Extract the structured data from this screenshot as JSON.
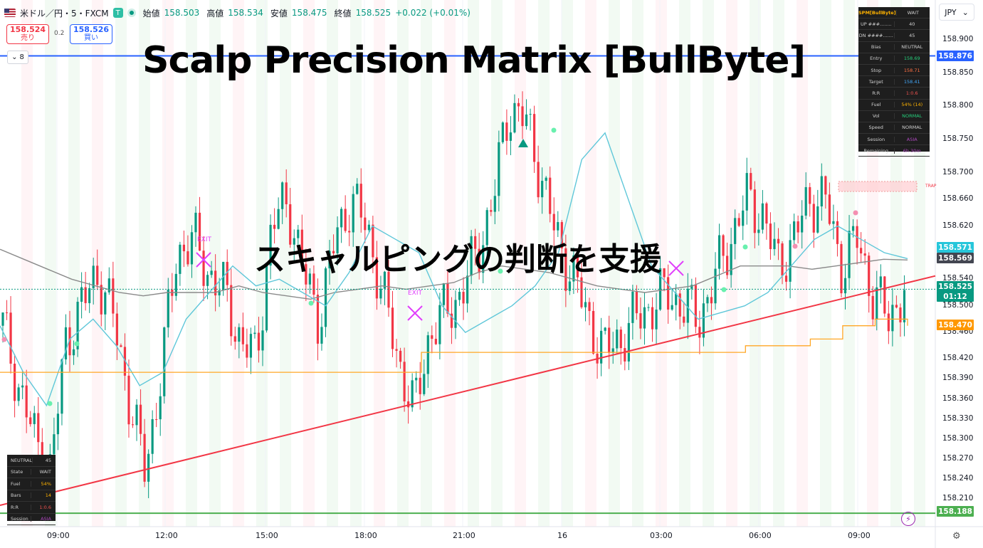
{
  "header": {
    "symbol": "米ドル／円・5・FXCM",
    "badge": "T",
    "open_label": "始値",
    "open": "158.503",
    "high_label": "高値",
    "high": "158.534",
    "low_label": "安値",
    "low": "158.475",
    "close_label": "終値",
    "close": "158.525",
    "change": "+0.022 (+0.01%)"
  },
  "trade": {
    "sell_price": "158.524",
    "sell_label": "売り",
    "spread": "0.2",
    "buy_price": "158.526",
    "buy_label": "買い"
  },
  "legend_toggle": {
    "count": "8",
    "icon": "chevron-down-icon"
  },
  "currency": "JPY",
  "titles": {
    "main": "Scalp Precision Matrix [BullByte]",
    "sub": "スキャルピングの判断を支援"
  },
  "price_axis": [
    "158.900",
    "158.850",
    "158.800",
    "158.750",
    "158.700",
    "158.660",
    "158.620",
    "158.540",
    "158.500",
    "158.460",
    "158.420",
    "158.390",
    "158.360",
    "158.330",
    "158.300",
    "158.270",
    "158.240",
    "158.210"
  ],
  "price_tags": [
    {
      "value": "158.876",
      "color": "#2962ff"
    },
    {
      "value": "158.571",
      "color": "#26c6da"
    },
    {
      "value": "158.569",
      "color": "#434651"
    },
    {
      "value": "158.525",
      "color": "#089981"
    },
    {
      "value": "01:12",
      "color": "#089981"
    },
    {
      "value": "158.470",
      "color": "#ff9800"
    },
    {
      "value": "158.188",
      "color": "#4caf50"
    }
  ],
  "time_axis": [
    "09:00",
    "12:00",
    "15:00",
    "18:00",
    "21:00",
    "16",
    "03:00",
    "06:00",
    "09:00"
  ],
  "markers": {
    "exit_label": "EXIT",
    "trap_label": "TRAP"
  },
  "spm_panel": {
    "title": "SPM[BullByte]",
    "state": "WAIT",
    "rows": [
      {
        "k": "UP ###........",
        "v": "40",
        "c": "#cfcfcf"
      },
      {
        "k": "DN ####.......",
        "v": "45",
        "c": "#cfcfcf"
      },
      {
        "k": "Bias",
        "v": "NEUTRAL",
        "c": "#cfcfcf"
      },
      {
        "k": "Entry",
        "v": "158.69",
        "c": "#26d07c"
      },
      {
        "k": "Stop",
        "v": "158.71",
        "c": "#ff7043"
      },
      {
        "k": "Target",
        "v": "158.41",
        "c": "#42a5f5"
      },
      {
        "k": "R:R",
        "v": "1:0.6",
        "c": "#ef5350"
      },
      {
        "k": "Fuel",
        "v": "54% (14)",
        "c": "#ffb300"
      },
      {
        "k": "Vol",
        "v": "NORMAL",
        "c": "#26d07c"
      },
      {
        "k": "Speed",
        "v": "NORMAL",
        "c": "#cfcfcf"
      },
      {
        "k": "Session",
        "v": "ASIA",
        "c": "#ab47bc"
      },
      {
        "k": "Remaining",
        "v": "6h 30m",
        "c": "#ab47bc"
      }
    ]
  },
  "mini_panel": {
    "title": "NEUTRAL",
    "value": "45",
    "rows": [
      {
        "k": "State",
        "v": "WAIT",
        "c": "#cfcfcf"
      },
      {
        "k": "Fuel",
        "v": "54%",
        "c": "#ffb300"
      },
      {
        "k": "Bars",
        "v": "14",
        "c": "#ffb300"
      },
      {
        "k": "R:R",
        "v": "1:0.6",
        "c": "#ef5350"
      },
      {
        "k": "Session",
        "v": "ASIA",
        "c": "#ab47bc"
      }
    ]
  },
  "icons": {
    "bolt": "bolt-icon",
    "settings": "gear-icon"
  },
  "chart_data": {
    "type": "candlestick",
    "ylim": [
      158.17,
      158.93
    ],
    "levels": {
      "blue_line": 158.876,
      "green_line": 158.188,
      "current": 158.525
    },
    "trendline": {
      "from": 158.2,
      "to": 158.545
    },
    "sma_slow": [
      158.585,
      158.57,
      158.555,
      158.54,
      158.53,
      158.52,
      158.515,
      158.52,
      158.52,
      158.52,
      158.53,
      158.52,
      158.515,
      158.51,
      158.52,
      158.525,
      158.53,
      158.525,
      158.53,
      158.535,
      158.55,
      158.56,
      158.555,
      158.55,
      158.54,
      158.53,
      158.525,
      158.52,
      158.525,
      158.53,
      158.545,
      158.56,
      158.56,
      158.56,
      158.555,
      158.56,
      158.565,
      158.57,
      158.569
    ],
    "sma_fast": [
      158.47,
      158.4,
      158.35,
      158.45,
      158.48,
      158.44,
      158.38,
      158.4,
      158.48,
      158.52,
      158.56,
      158.53,
      158.54,
      158.52,
      158.5,
      158.55,
      158.62,
      158.6,
      158.58,
      158.5,
      158.46,
      158.48,
      158.5,
      158.53,
      158.58,
      158.72,
      158.76,
      158.66,
      158.56,
      158.52,
      158.48,
      158.49,
      158.5,
      158.52,
      158.56,
      158.6,
      158.62,
      158.6,
      158.58,
      158.571
    ],
    "orange_line": [
      158.4,
      158.4,
      158.4,
      158.4,
      158.4,
      158.4,
      158.4,
      158.4,
      158.4,
      158.4,
      158.4,
      158.4,
      158.4,
      158.43,
      158.43,
      158.43,
      158.43,
      158.43,
      158.43,
      158.43,
      158.43,
      158.43,
      158.43,
      158.44,
      158.44,
      158.45,
      158.47,
      158.48,
      158.47
    ],
    "candles_close": [
      158.47,
      158.38,
      158.3,
      158.25,
      158.45,
      158.5,
      158.55,
      158.48,
      158.36,
      158.25,
      158.4,
      158.58,
      158.6,
      158.55,
      158.52,
      158.45,
      158.42,
      158.62,
      158.66,
      158.55,
      158.48,
      158.6,
      158.66,
      158.62,
      158.52,
      158.42,
      158.34,
      158.46,
      158.49,
      158.52,
      158.58,
      158.66,
      158.8,
      158.78,
      158.7,
      158.6,
      158.55,
      158.48,
      158.43,
      158.45,
      158.48,
      158.5,
      158.52,
      158.5,
      158.48,
      158.54,
      158.6,
      158.66,
      158.64,
      158.56,
      158.6,
      158.66,
      158.66,
      158.56,
      158.6,
      158.52,
      158.48,
      158.525
    ]
  }
}
